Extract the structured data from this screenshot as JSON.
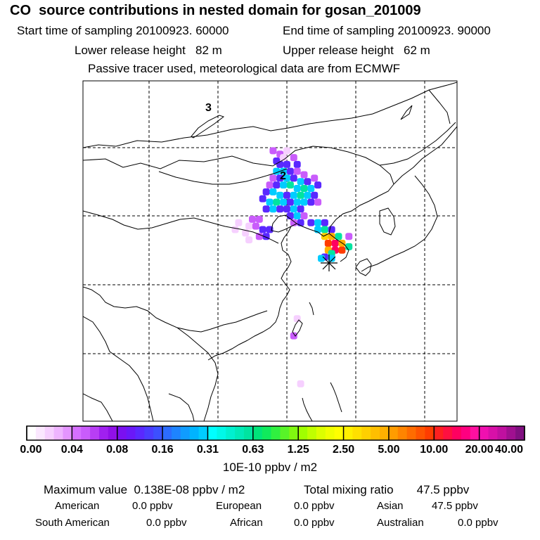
{
  "header": {
    "title": "CO  source contributions in nested domain for gosan_201009",
    "start_time": "Start time of sampling 20100923. 60000",
    "end_time": "End time of sampling 20100923. 90000",
    "lower_height": "Lower release height   82 m",
    "upper_height": "Upper release height   62 m",
    "tracer_note": "Passive tracer used, meteorological data are from ECMWF"
  },
  "map": {
    "labels": [
      "3",
      "2"
    ],
    "receptor_symbol": "star-receptor"
  },
  "chart_data": {
    "type": "heatmap",
    "title": "CO  source contributions in nested domain for gosan_201009",
    "colorbar": {
      "ticks": [
        "0.00",
        "0.04",
        "0.08",
        "0.16",
        "0.31",
        "0.63",
        "1.25",
        "2.50",
        "5.00",
        "10.00",
        "20.00",
        "40.00"
      ],
      "values": [
        0.0,
        0.04,
        0.08,
        0.16,
        0.31,
        0.63,
        1.25,
        2.5,
        5.0,
        10.0,
        20.0,
        40.0
      ],
      "colors": [
        [
          "#ffffff",
          "#fbe8ff",
          "#f6d0ff",
          "#eeb4ff",
          "#e495ff"
        ],
        [
          "#d670ff",
          "#c95cfb",
          "#b83ef5",
          "#a020f0",
          "#9010e8"
        ],
        [
          "#7a10f0",
          "#6a18f8",
          "#5a28ff",
          "#4a3cff",
          "#3c50ff"
        ],
        [
          "#2c6cff",
          "#1e84ff",
          "#109cff",
          "#00b4ff",
          "#00ccff"
        ],
        [
          "#00ffff",
          "#00f8e8",
          "#00f0d0",
          "#00eab8",
          "#00e4a0"
        ],
        [
          "#00e47a",
          "#10ea5c",
          "#30f040",
          "#58f428",
          "#80f810"
        ],
        [
          "#a0ff00",
          "#c0ff00",
          "#dcff00",
          "#f0ff00",
          "#ffff00"
        ],
        [
          "#fff000",
          "#ffe000",
          "#ffd000",
          "#ffbf00",
          "#ffb000"
        ],
        [
          "#ff9c00",
          "#ff8400",
          "#ff6c00",
          "#ff5400",
          "#ff3c00"
        ],
        [
          "#ff2020",
          "#ff1040",
          "#ff0060",
          "#ff0080",
          "#ff10a0"
        ],
        [
          "#f010b0",
          "#d810a8",
          "#c010a0",
          "#a01090",
          "#801080"
        ]
      ],
      "units": "10E-10 ppbv / m2"
    },
    "footer": {
      "maximum": "Maximum value  0.138E-08 ppbv / m2",
      "total": "Total mixing ratio       47.5 ppbv",
      "sources": [
        {
          "name": "American",
          "value": "0.0 ppbv"
        },
        {
          "name": "European",
          "value": "0.0 ppbv"
        },
        {
          "name": "Asian",
          "value": "47.5 ppbv"
        },
        {
          "name": "South American",
          "value": "0.0 ppbv"
        },
        {
          "name": "African",
          "value": "0.0 ppbv"
        },
        {
          "name": "Australian",
          "value": "0.0 ppbv"
        }
      ]
    },
    "plume_cells": [
      {
        "lon": 118.0,
        "lat": 49.5,
        "level": 2
      },
      {
        "lon": 119.0,
        "lat": 49.0,
        "level": 2
      },
      {
        "lon": 119.5,
        "lat": 48.5,
        "level": 1
      },
      {
        "lon": 120.0,
        "lat": 49.5,
        "level": 1
      },
      {
        "lon": 118.5,
        "lat": 48.0,
        "level": 3
      },
      {
        "lon": 119.0,
        "lat": 47.5,
        "level": 3
      },
      {
        "lon": 120.0,
        "lat": 47.5,
        "level": 3
      },
      {
        "lon": 121.0,
        "lat": 48.5,
        "level": 2
      },
      {
        "lon": 121.5,
        "lat": 47.5,
        "level": 3
      },
      {
        "lon": 118.5,
        "lat": 46.5,
        "level": 4
      },
      {
        "lon": 119.5,
        "lat": 46.5,
        "level": 4
      },
      {
        "lon": 120.5,
        "lat": 46.5,
        "level": 3
      },
      {
        "lon": 121.5,
        "lat": 46.5,
        "level": 2
      },
      {
        "lon": 122.5,
        "lat": 46.0,
        "level": 2
      },
      {
        "lon": 118.0,
        "lat": 45.5,
        "level": 2
      },
      {
        "lon": 119.0,
        "lat": 45.5,
        "level": 3
      },
      {
        "lon": 120.0,
        "lat": 45.5,
        "level": 4
      },
      {
        "lon": 121.0,
        "lat": 45.5,
        "level": 3
      },
      {
        "lon": 122.0,
        "lat": 45.0,
        "level": 4
      },
      {
        "lon": 123.0,
        "lat": 45.0,
        "level": 3
      },
      {
        "lon": 124.0,
        "lat": 45.5,
        "level": 2
      },
      {
        "lon": 117.5,
        "lat": 44.5,
        "level": 2
      },
      {
        "lon": 118.5,
        "lat": 44.5,
        "level": 3
      },
      {
        "lon": 119.5,
        "lat": 44.5,
        "level": 4
      },
      {
        "lon": 120.5,
        "lat": 44.5,
        "level": 5
      },
      {
        "lon": 121.5,
        "lat": 44.0,
        "level": 4
      },
      {
        "lon": 122.5,
        "lat": 44.0,
        "level": 5
      },
      {
        "lon": 123.5,
        "lat": 44.0,
        "level": 4
      },
      {
        "lon": 124.5,
        "lat": 44.5,
        "level": 3
      },
      {
        "lon": 117.0,
        "lat": 43.5,
        "level": 3
      },
      {
        "lon": 118.0,
        "lat": 43.5,
        "level": 4
      },
      {
        "lon": 119.0,
        "lat": 43.0,
        "level": 4
      },
      {
        "lon": 120.0,
        "lat": 43.0,
        "level": 3
      },
      {
        "lon": 121.0,
        "lat": 43.0,
        "level": 4
      },
      {
        "lon": 122.0,
        "lat": 43.0,
        "level": 5
      },
      {
        "lon": 123.0,
        "lat": 43.0,
        "level": 4
      },
      {
        "lon": 124.0,
        "lat": 43.0,
        "level": 3
      },
      {
        "lon": 116.5,
        "lat": 42.5,
        "level": 3
      },
      {
        "lon": 117.5,
        "lat": 42.0,
        "level": 4
      },
      {
        "lon": 118.5,
        "lat": 42.0,
        "level": 5
      },
      {
        "lon": 119.5,
        "lat": 42.0,
        "level": 4
      },
      {
        "lon": 120.5,
        "lat": 42.0,
        "level": 3
      },
      {
        "lon": 121.5,
        "lat": 42.0,
        "level": 4
      },
      {
        "lon": 122.5,
        "lat": 42.0,
        "level": 4
      },
      {
        "lon": 123.5,
        "lat": 42.0,
        "level": 3
      },
      {
        "lon": 124.5,
        "lat": 42.0,
        "level": 2
      },
      {
        "lon": 117.0,
        "lat": 41.0,
        "level": 3
      },
      {
        "lon": 118.0,
        "lat": 41.0,
        "level": 4
      },
      {
        "lon": 119.0,
        "lat": 41.0,
        "level": 3
      },
      {
        "lon": 120.0,
        "lat": 41.0,
        "level": 3
      },
      {
        "lon": 121.0,
        "lat": 41.0,
        "level": 4
      },
      {
        "lon": 122.0,
        "lat": 41.0,
        "level": 3
      },
      {
        "lon": 120.5,
        "lat": 40.0,
        "level": 3
      },
      {
        "lon": 121.5,
        "lat": 40.0,
        "level": 4
      },
      {
        "lon": 122.5,
        "lat": 40.0,
        "level": 2
      },
      {
        "lon": 122.0,
        "lat": 39.0,
        "level": 3
      },
      {
        "lon": 121.0,
        "lat": 39.0,
        "level": 2
      },
      {
        "lon": 116.0,
        "lat": 39.5,
        "level": 2
      },
      {
        "lon": 115.0,
        "lat": 39.5,
        "level": 2
      },
      {
        "lon": 114.5,
        "lat": 38.5,
        "level": 1
      },
      {
        "lon": 115.5,
        "lat": 38.5,
        "level": 2
      },
      {
        "lon": 116.5,
        "lat": 38.0,
        "level": 3
      },
      {
        "lon": 117.5,
        "lat": 38.0,
        "level": 3
      },
      {
        "lon": 116.0,
        "lat": 37.0,
        "level": 2
      },
      {
        "lon": 117.0,
        "lat": 37.0,
        "level": 3
      },
      {
        "lon": 114.0,
        "lat": 37.5,
        "level": 1
      },
      {
        "lon": 113.0,
        "lat": 39.0,
        "level": 1
      },
      {
        "lon": 112.5,
        "lat": 38.0,
        "level": 1
      },
      {
        "lon": 114.5,
        "lat": 36.5,
        "level": 1
      },
      {
        "lon": 123.5,
        "lat": 39.0,
        "level": 3
      },
      {
        "lon": 124.5,
        "lat": 39.0,
        "level": 4
      },
      {
        "lon": 125.5,
        "lat": 39.0,
        "level": 3
      },
      {
        "lon": 124.5,
        "lat": 38.0,
        "level": 4
      },
      {
        "lon": 125.5,
        "lat": 38.0,
        "level": 5
      },
      {
        "lon": 126.5,
        "lat": 38.0,
        "level": 3
      },
      {
        "lon": 125.5,
        "lat": 37.0,
        "level": 6
      },
      {
        "lon": 126.5,
        "lat": 37.0,
        "level": 7
      },
      {
        "lon": 127.5,
        "lat": 37.0,
        "level": 5
      },
      {
        "lon": 126.0,
        "lat": 36.0,
        "level": 8
      },
      {
        "lon": 127.0,
        "lat": 36.0,
        "level": 9
      },
      {
        "lon": 128.0,
        "lat": 36.0,
        "level": 7
      },
      {
        "lon": 126.0,
        "lat": 35.0,
        "level": 7
      },
      {
        "lon": 127.0,
        "lat": 35.0,
        "level": 9
      },
      {
        "lon": 128.0,
        "lat": 35.0,
        "level": 8
      },
      {
        "lon": 129.0,
        "lat": 35.5,
        "level": 5
      },
      {
        "lon": 126.5,
        "lat": 34.5,
        "level": 5
      },
      {
        "lon": 125.5,
        "lat": 34.0,
        "level": 3
      },
      {
        "lon": 129.0,
        "lat": 37.0,
        "level": 2
      },
      {
        "lon": 125.0,
        "lat": 33.8,
        "level": 4
      },
      {
        "lon": 126.5,
        "lat": 33.8,
        "level": 4
      },
      {
        "lon": 121.0,
        "lat": 22.5,
        "level": 2
      },
      {
        "lon": 121.5,
        "lat": 25.0,
        "level": 1
      },
      {
        "lon": 122.0,
        "lat": 15.5,
        "level": 1
      }
    ]
  }
}
